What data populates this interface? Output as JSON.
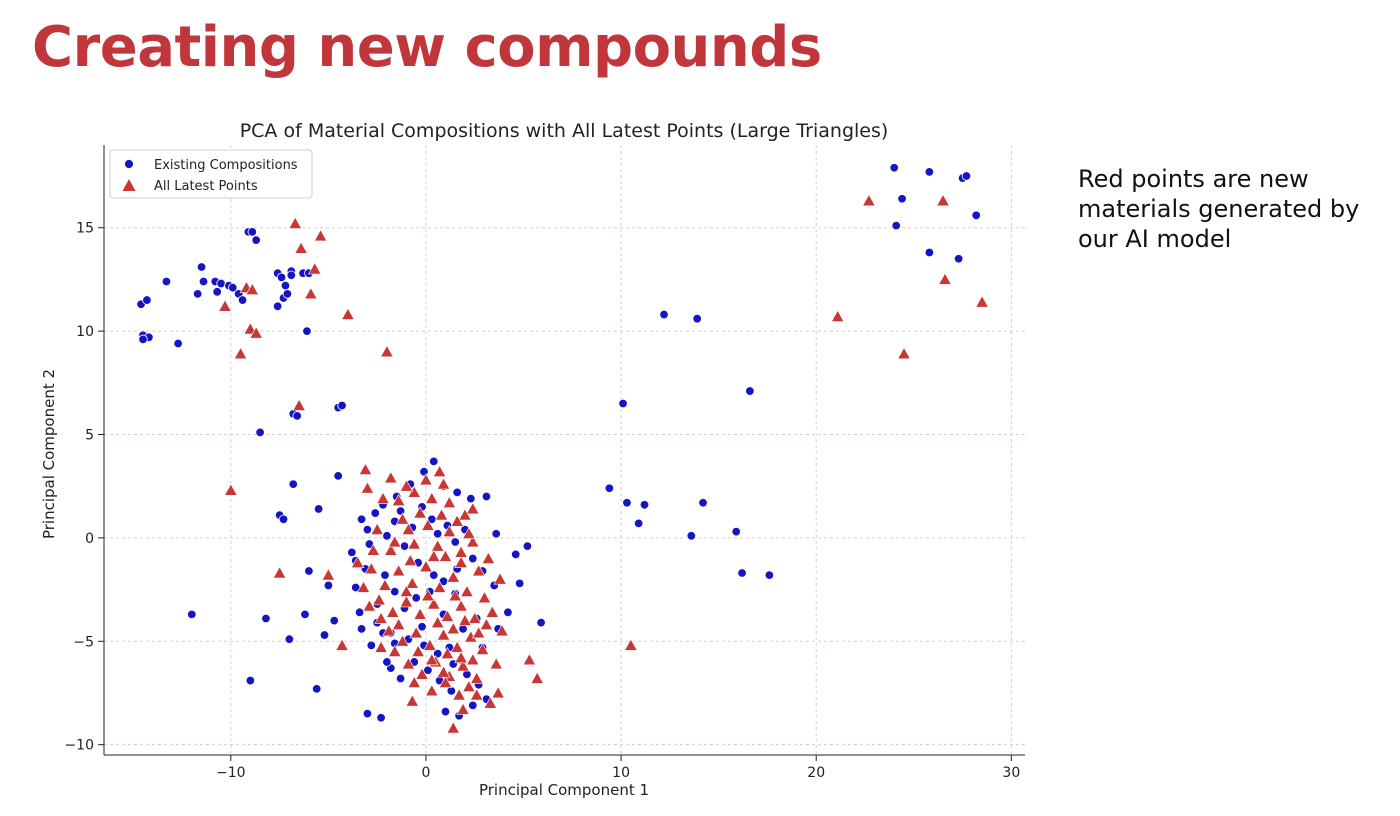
{
  "slide": {
    "title": "Creating new compounds",
    "note_lines": [
      "Red points are new",
      "materials generated by",
      "our AI model"
    ]
  },
  "colors": {
    "title": "#c1363b",
    "existing": "#1515c4",
    "latest": "#c93636",
    "grid": "#e3c9d0",
    "axis": "#222222"
  },
  "chart_data": {
    "type": "scatter",
    "title": "PCA of Material Compositions with All Latest Points (Large Triangles)",
    "xlabel": "Principal Component 1",
    "ylabel": "Principal Component 2",
    "xlim": [
      -16.5,
      30.7
    ],
    "ylim": [
      -10.5,
      19
    ],
    "xticks": [
      -10,
      0,
      10,
      20,
      30
    ],
    "yticks": [
      -10,
      -5,
      0,
      5,
      10,
      15
    ],
    "grid": true,
    "legend_position": "top-left",
    "series": [
      {
        "name": "Existing Compositions",
        "marker": "circle",
        "points": [
          [
            -14.6,
            11.3
          ],
          [
            -14.3,
            11.5
          ],
          [
            -13.3,
            12.4
          ],
          [
            -14.5,
            9.8
          ],
          [
            -14.2,
            9.7
          ],
          [
            -14.5,
            9.6
          ],
          [
            -12.7,
            9.4
          ],
          [
            -11.4,
            12.4
          ],
          [
            -11.5,
            13.1
          ],
          [
            -11.7,
            11.8
          ],
          [
            -10.8,
            12.4
          ],
          [
            -10.5,
            12.3
          ],
          [
            -10.7,
            11.9
          ],
          [
            -10.1,
            12.2
          ],
          [
            -9.9,
            12.1
          ],
          [
            -9.6,
            11.8
          ],
          [
            -9.4,
            11.5
          ],
          [
            -9.1,
            14.8
          ],
          [
            -8.9,
            14.8
          ],
          [
            -8.7,
            14.4
          ],
          [
            -7.6,
            12.8
          ],
          [
            -7.4,
            12.6
          ],
          [
            -7.2,
            12.2
          ],
          [
            -7.6,
            11.2
          ],
          [
            -7.3,
            11.6
          ],
          [
            -7.1,
            11.8
          ],
          [
            -6.9,
            12.9
          ],
          [
            -6.9,
            12.7
          ],
          [
            -6.3,
            12.8
          ],
          [
            -6.0,
            12.8
          ],
          [
            -6.1,
            10.0
          ],
          [
            -6.8,
            6.0
          ],
          [
            -6.6,
            5.9
          ],
          [
            -4.5,
            6.3
          ],
          [
            -4.3,
            6.4
          ],
          [
            -8.5,
            5.1
          ],
          [
            -12.0,
            -3.7
          ],
          [
            -9.0,
            -6.9
          ],
          [
            -8.2,
            -3.9
          ],
          [
            -7.5,
            1.1
          ],
          [
            -7.3,
            0.9
          ],
          [
            -7.0,
            -4.9
          ],
          [
            -6.8,
            2.6
          ],
          [
            -6.2,
            -3.7
          ],
          [
            -6.0,
            -1.6
          ],
          [
            -5.6,
            -7.3
          ],
          [
            -5.5,
            1.4
          ],
          [
            -5.2,
            -4.7
          ],
          [
            -5.0,
            -2.3
          ],
          [
            -4.7,
            -4.0
          ],
          [
            -4.5,
            3.0
          ],
          [
            -3.8,
            -0.7
          ],
          [
            -3.3,
            -4.4
          ],
          [
            -3.0,
            -8.5
          ],
          [
            -2.3,
            -8.7
          ],
          [
            -2.2,
            -4.6
          ],
          [
            -1.8,
            -6.3
          ],
          [
            -1.6,
            -5.1
          ],
          [
            -1.3,
            -6.8
          ],
          [
            -2.8,
            -5.2
          ],
          [
            -2.0,
            -6.0
          ],
          [
            -3.1,
            -1.5
          ],
          [
            -3.6,
            -2.4
          ],
          [
            -2.5,
            -3.2
          ],
          [
            -2.9,
            -0.3
          ],
          [
            -3.3,
            0.9
          ],
          [
            -2.6,
            1.2
          ],
          [
            -2.0,
            0.1
          ],
          [
            -1.6,
            0.8
          ],
          [
            -1.1,
            -0.4
          ],
          [
            -0.7,
            0.5
          ],
          [
            -0.2,
            1.5
          ],
          [
            0.3,
            0.9
          ],
          [
            0.6,
            0.2
          ],
          [
            1.1,
            0.6
          ],
          [
            1.5,
            -0.2
          ],
          [
            2.0,
            0.4
          ],
          [
            2.4,
            -1.0
          ],
          [
            2.9,
            -1.6
          ],
          [
            3.5,
            -2.3
          ],
          [
            1.6,
            -1.5
          ],
          [
            0.9,
            -2.1
          ],
          [
            0.2,
            -2.6
          ],
          [
            -0.5,
            -2.9
          ],
          [
            -1.1,
            -3.4
          ],
          [
            -1.6,
            -2.6
          ],
          [
            -2.1,
            -1.8
          ],
          [
            -3.4,
            -3.6
          ],
          [
            -2.5,
            -4.1
          ],
          [
            -1.8,
            -4.6
          ],
          [
            -0.9,
            -4.9
          ],
          [
            -0.1,
            -5.2
          ],
          [
            0.6,
            -5.6
          ],
          [
            1.4,
            -6.1
          ],
          [
            2.1,
            -6.6
          ],
          [
            2.7,
            -7.1
          ],
          [
            3.1,
            -7.8
          ],
          [
            2.4,
            -8.1
          ],
          [
            1.7,
            -8.6
          ],
          [
            1.0,
            -8.4
          ],
          [
            1.3,
            -7.4
          ],
          [
            0.7,
            -6.9
          ],
          [
            0.1,
            -6.4
          ],
          [
            -0.6,
            -6.0
          ],
          [
            2.9,
            -5.3
          ],
          [
            3.7,
            -4.4
          ],
          [
            4.2,
            -3.6
          ],
          [
            4.8,
            -2.2
          ],
          [
            5.2,
            -0.4
          ],
          [
            4.6,
            -0.8
          ],
          [
            3.6,
            0.2
          ],
          [
            3.1,
            2.0
          ],
          [
            2.3,
            1.9
          ],
          [
            1.6,
            2.2
          ],
          [
            0.9,
            2.5
          ],
          [
            0.4,
            3.7
          ],
          [
            -0.1,
            3.2
          ],
          [
            -0.8,
            2.6
          ],
          [
            -1.5,
            2.0
          ],
          [
            -2.2,
            1.6
          ],
          [
            -3.0,
            0.4
          ],
          [
            -3.6,
            -1.1
          ],
          [
            -0.4,
            -1.2
          ],
          [
            0.9,
            -3.7
          ],
          [
            1.9,
            -4.4
          ],
          [
            2.6,
            -3.9
          ],
          [
            -0.2,
            -4.3
          ],
          [
            1.2,
            -5.3
          ],
          [
            1.8,
            -5.9
          ],
          [
            1.5,
            -2.7
          ],
          [
            0.4,
            -1.8
          ],
          [
            -1.3,
            1.3
          ],
          [
            5.9,
            -4.1
          ],
          [
            9.4,
            2.4
          ],
          [
            10.1,
            6.5
          ],
          [
            10.3,
            1.7
          ],
          [
            10.9,
            0.7
          ],
          [
            11.2,
            1.6
          ],
          [
            12.2,
            10.8
          ],
          [
            13.6,
            0.1
          ],
          [
            13.9,
            10.6
          ],
          [
            14.2,
            1.7
          ],
          [
            15.9,
            0.3
          ],
          [
            16.2,
            -1.7
          ],
          [
            16.6,
            7.1
          ],
          [
            17.6,
            -1.8
          ],
          [
            24.0,
            17.9
          ],
          [
            24.1,
            15.1
          ],
          [
            24.4,
            16.4
          ],
          [
            25.8,
            17.7
          ],
          [
            25.8,
            13.8
          ],
          [
            27.3,
            13.5
          ],
          [
            27.5,
            17.4
          ],
          [
            27.7,
            17.5
          ],
          [
            28.2,
            15.6
          ]
        ]
      },
      {
        "name": "All Latest Points",
        "marker": "triangle",
        "points": [
          [
            -10.3,
            11.2
          ],
          [
            -9.5,
            8.9
          ],
          [
            -9.2,
            12.1
          ],
          [
            -9.0,
            10.1
          ],
          [
            -8.9,
            12.0
          ],
          [
            -8.7,
            9.9
          ],
          [
            -6.7,
            15.2
          ],
          [
            -6.4,
            14.0
          ],
          [
            -6.5,
            6.4
          ],
          [
            -5.9,
            11.8
          ],
          [
            -5.7,
            13.0
          ],
          [
            -5.4,
            14.6
          ],
          [
            -4.0,
            10.8
          ],
          [
            -2.0,
            9.0
          ],
          [
            -10.0,
            2.3
          ],
          [
            -7.5,
            -1.7
          ],
          [
            -5.0,
            -1.8
          ],
          [
            -4.3,
            -5.2
          ],
          [
            -3.1,
            3.3
          ],
          [
            -2.3,
            -5.3
          ],
          [
            -1.8,
            2.9
          ],
          [
            -0.7,
            -7.9
          ],
          [
            0.7,
            3.2
          ],
          [
            1.4,
            -9.2
          ],
          [
            1.8,
            -1.2
          ],
          [
            2.4,
            1.4
          ],
          [
            3.3,
            -8.0
          ],
          [
            3.7,
            -7.5
          ],
          [
            3.6,
            -6.1
          ],
          [
            3.9,
            -4.5
          ],
          [
            5.3,
            -5.9
          ],
          [
            5.7,
            -6.8
          ],
          [
            10.5,
            -5.2
          ],
          [
            21.1,
            10.7
          ],
          [
            22.7,
            16.3
          ],
          [
            24.5,
            8.9
          ],
          [
            26.5,
            16.3
          ],
          [
            26.6,
            12.5
          ],
          [
            28.5,
            11.4
          ],
          [
            -2.5,
            0.4
          ],
          [
            -1.8,
            -0.6
          ],
          [
            -1.2,
            0.9
          ],
          [
            -0.6,
            -0.3
          ],
          [
            0.1,
            0.6
          ],
          [
            0.6,
            -0.4
          ],
          [
            1.2,
            0.3
          ],
          [
            1.8,
            -0.7
          ],
          [
            2.4,
            -0.2
          ],
          [
            -2.8,
            -1.5
          ],
          [
            -2.1,
            -2.3
          ],
          [
            -1.4,
            -1.6
          ],
          [
            -0.7,
            -2.2
          ],
          [
            0.0,
            -1.4
          ],
          [
            0.7,
            -2.4
          ],
          [
            1.4,
            -1.9
          ],
          [
            2.1,
            -2.6
          ],
          [
            2.7,
            -1.6
          ],
          [
            -2.4,
            -3.0
          ],
          [
            -1.7,
            -3.6
          ],
          [
            -1.0,
            -3.1
          ],
          [
            -0.3,
            -3.7
          ],
          [
            0.4,
            -3.2
          ],
          [
            1.1,
            -3.8
          ],
          [
            1.8,
            -3.3
          ],
          [
            2.5,
            -3.9
          ],
          [
            3.0,
            -2.9
          ],
          [
            -1.9,
            -4.5
          ],
          [
            -1.2,
            -5.0
          ],
          [
            -0.5,
            -4.6
          ],
          [
            0.2,
            -5.2
          ],
          [
            0.9,
            -4.7
          ],
          [
            1.6,
            -5.3
          ],
          [
            2.3,
            -4.8
          ],
          [
            2.9,
            -5.4
          ],
          [
            -0.9,
            -6.1
          ],
          [
            -0.2,
            -6.6
          ],
          [
            0.5,
            -6.0
          ],
          [
            1.2,
            -6.7
          ],
          [
            1.9,
            -6.2
          ],
          [
            2.6,
            -6.8
          ],
          [
            0.3,
            -7.4
          ],
          [
            1.0,
            -7.0
          ],
          [
            1.7,
            -7.6
          ],
          [
            2.2,
            -7.2
          ],
          [
            -1.4,
            1.8
          ],
          [
            -0.6,
            2.2
          ],
          [
            0.3,
            1.9
          ],
          [
            1.2,
            1.7
          ],
          [
            2.0,
            1.1
          ],
          [
            -2.2,
            1.9
          ],
          [
            -3.0,
            2.4
          ],
          [
            -1.0,
            2.5
          ],
          [
            -2.7,
            -0.6
          ],
          [
            3.2,
            -1.0
          ],
          [
            3.8,
            -2.0
          ],
          [
            0.0,
            2.8
          ],
          [
            0.9,
            2.6
          ],
          [
            -3.2,
            -2.4
          ],
          [
            3.4,
            -3.6
          ],
          [
            -0.3,
            1.2
          ],
          [
            0.8,
            1.1
          ],
          [
            1.6,
            0.8
          ],
          [
            -1.6,
            -0.2
          ],
          [
            -0.9,
            0.4
          ],
          [
            0.4,
            -0.9
          ],
          [
            1.0,
            -0.9
          ],
          [
            -2.3,
            -3.9
          ],
          [
            -1.4,
            -4.2
          ],
          [
            0.6,
            -4.1
          ],
          [
            1.4,
            -4.4
          ],
          [
            2.0,
            -4.0
          ],
          [
            2.7,
            -4.6
          ],
          [
            -0.4,
            -5.5
          ],
          [
            0.3,
            -5.9
          ],
          [
            1.1,
            -5.6
          ],
          [
            1.8,
            -5.8
          ],
          [
            2.4,
            -5.9
          ],
          [
            -0.6,
            -7.0
          ],
          [
            2.6,
            -7.6
          ],
          [
            -3.5,
            -1.2
          ],
          [
            1.5,
            -2.8
          ],
          [
            0.1,
            -2.8
          ],
          [
            -0.8,
            -1.1
          ],
          [
            2.2,
            0.2
          ],
          [
            -1.0,
            -2.6
          ],
          [
            3.1,
            -4.2
          ],
          [
            0.9,
            -6.5
          ],
          [
            -1.6,
            -5.5
          ],
          [
            -2.9,
            -3.3
          ],
          [
            1.9,
            -8.3
          ]
        ]
      }
    ]
  }
}
